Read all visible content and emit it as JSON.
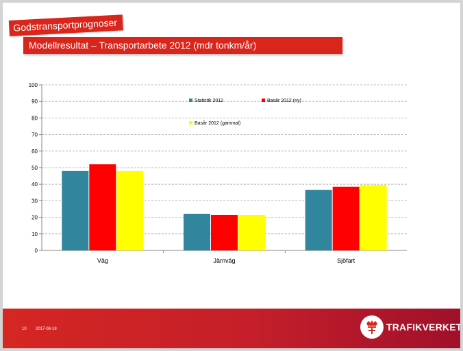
{
  "slide": {
    "section_tag": "Godstransportprognoser",
    "title": "Modellresultat – Transportarbete 2012 (mdr tonkm/år)",
    "footer_page": "10",
    "footer_date": "2017-08-18",
    "logo_text": "TRAFIKVERKET",
    "brand_color": "#d9261c"
  },
  "chart_data": {
    "type": "bar",
    "categories": [
      "Väg",
      "Järnväg",
      "Sjöfart"
    ],
    "series": [
      {
        "name": "Statistik 2012",
        "color": "#31859c",
        "values": [
          48,
          22,
          36.5
        ]
      },
      {
        "name": "Basår 2012 (ny)",
        "color": "#ff0000",
        "values": [
          52,
          21.5,
          38.5
        ]
      },
      {
        "name": "Basår 2012 (gammal)",
        "color": "#ffff00",
        "values": [
          48,
          21.5,
          39.5
        ]
      }
    ],
    "ylim": [
      0,
      100
    ],
    "yticks": [
      "0",
      "10",
      "20",
      "30",
      "40",
      "50",
      "60",
      "70",
      "80",
      "90",
      "100"
    ],
    "grid": true,
    "legend_position": "top-center"
  }
}
